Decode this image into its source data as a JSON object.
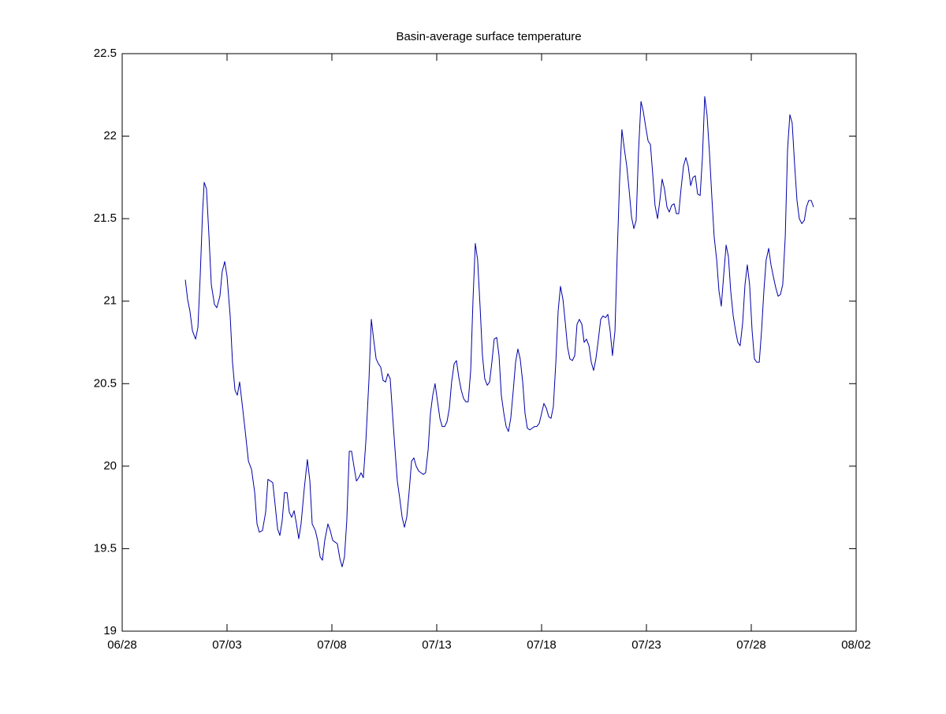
{
  "chart_data": {
    "type": "line",
    "title": "Basin-average surface temperature",
    "color": "#0000aa",
    "xlim": [
      0,
      35
    ],
    "xticks": [
      {
        "value": 0,
        "label": "06/28"
      },
      {
        "value": 5,
        "label": "07/03"
      },
      {
        "value": 10,
        "label": "07/08"
      },
      {
        "value": 15,
        "label": "07/13"
      },
      {
        "value": 20,
        "label": "07/18"
      },
      {
        "value": 25,
        "label": "07/23"
      },
      {
        "value": 30,
        "label": "07/28"
      },
      {
        "value": 35,
        "label": "08/02"
      }
    ],
    "ylim": [
      19,
      22.5
    ],
    "yticks": [
      19,
      19.5,
      20,
      20.5,
      21,
      21.5,
      22,
      22.5
    ],
    "grid": false,
    "x": [
      3.01,
      3.12,
      3.23,
      3.35,
      3.5,
      3.61,
      3.72,
      3.83,
      3.91,
      4.02,
      4.14,
      4.25,
      4.4,
      4.51,
      4.66,
      4.77,
      4.89,
      5.0,
      5.15,
      5.26,
      5.38,
      5.49,
      5.6,
      5.71,
      5.86,
      6.02,
      6.17,
      6.32,
      6.43,
      6.54,
      6.69,
      6.84,
      6.95,
      7.07,
      7.18,
      7.29,
      7.41,
      7.52,
      7.63,
      7.74,
      7.86,
      7.97,
      8.08,
      8.2,
      8.31,
      8.42,
      8.53,
      8.68,
      8.83,
      8.95,
      9.06,
      9.21,
      9.32,
      9.44,
      9.55,
      9.66,
      9.81,
      9.92,
      10.04,
      10.15,
      10.26,
      10.38,
      10.49,
      10.6,
      10.71,
      10.83,
      10.94,
      11.05,
      11.17,
      11.28,
      11.39,
      11.5,
      11.62,
      11.77,
      11.88,
      11.99,
      12.11,
      12.22,
      12.33,
      12.44,
      12.56,
      12.67,
      12.78,
      12.89,
      13.01,
      13.12,
      13.23,
      13.35,
      13.46,
      13.57,
      13.68,
      13.8,
      13.91,
      14.02,
      14.14,
      14.25,
      14.36,
      14.47,
      14.59,
      14.7,
      14.81,
      14.92,
      15.04,
      15.15,
      15.26,
      15.38,
      15.49,
      15.6,
      15.71,
      15.83,
      15.94,
      16.05,
      16.17,
      16.28,
      16.39,
      16.5,
      16.62,
      16.73,
      16.84,
      16.95,
      17.07,
      17.18,
      17.29,
      17.41,
      17.52,
      17.63,
      17.74,
      17.86,
      17.97,
      18.08,
      18.2,
      18.31,
      18.42,
      18.53,
      18.65,
      18.76,
      18.87,
      18.98,
      19.1,
      19.21,
      19.32,
      19.44,
      19.55,
      19.66,
      19.77,
      19.89,
      20.0,
      20.11,
      20.23,
      20.34,
      20.45,
      20.56,
      20.68,
      20.79,
      20.9,
      21.02,
      21.13,
      21.24,
      21.35,
      21.47,
      21.58,
      21.69,
      21.8,
      21.92,
      22.03,
      22.14,
      22.26,
      22.37,
      22.48,
      22.59,
      22.71,
      22.82,
      22.93,
      23.05,
      23.16,
      23.27,
      23.38,
      23.5,
      23.61,
      23.72,
      23.83,
      23.95,
      24.06,
      24.17,
      24.29,
      24.4,
      24.51,
      24.62,
      24.74,
      24.85,
      24.96,
      25.08,
      25.19,
      25.3,
      25.41,
      25.53,
      25.64,
      25.75,
      25.86,
      25.98,
      26.09,
      26.2,
      26.32,
      26.43,
      26.54,
      26.65,
      26.77,
      26.88,
      26.99,
      27.11,
      27.22,
      27.33,
      27.44,
      27.56,
      27.67,
      27.78,
      27.89,
      28.01,
      28.12,
      28.23,
      28.35,
      28.46,
      28.57,
      28.68,
      28.8,
      28.91,
      29.02,
      29.14,
      29.25,
      29.36,
      29.47,
      29.59,
      29.7,
      29.81,
      29.92,
      30.04,
      30.15,
      30.26,
      30.38,
      30.49,
      30.6,
      30.71,
      30.83,
      30.94,
      31.05,
      31.17,
      31.28,
      31.39,
      31.5,
      31.62,
      31.73,
      31.84,
      31.95,
      32.07,
      32.18,
      32.29,
      32.41,
      32.53,
      32.63,
      32.74,
      32.86,
      32.97
    ],
    "values": [
      21.13,
      21.01,
      20.94,
      20.82,
      20.77,
      20.84,
      21.15,
      21.53,
      21.72,
      21.68,
      21.39,
      21.1,
      20.98,
      20.96,
      21.03,
      21.18,
      21.24,
      21.15,
      20.91,
      20.63,
      20.46,
      20.43,
      20.51,
      20.39,
      20.22,
      20.03,
      19.98,
      19.84,
      19.65,
      19.6,
      19.61,
      19.72,
      19.92,
      19.91,
      19.9,
      19.77,
      19.62,
      19.58,
      19.67,
      19.84,
      19.84,
      19.72,
      19.69,
      19.73,
      19.65,
      19.56,
      19.65,
      19.86,
      20.04,
      19.91,
      19.65,
      19.61,
      19.55,
      19.45,
      19.43,
      19.55,
      19.65,
      19.61,
      19.55,
      19.54,
      19.53,
      19.44,
      19.39,
      19.45,
      19.67,
      20.09,
      20.09,
      20.0,
      19.91,
      19.93,
      19.96,
      19.93,
      20.15,
      20.53,
      20.89,
      20.77,
      20.65,
      20.62,
      20.6,
      20.52,
      20.51,
      20.56,
      20.53,
      20.32,
      20.1,
      19.91,
      19.81,
      19.69,
      19.63,
      19.69,
      19.84,
      20.03,
      20.05,
      20.0,
      19.97,
      19.96,
      19.95,
      19.96,
      20.1,
      20.32,
      20.43,
      20.5,
      20.39,
      20.29,
      20.24,
      20.24,
      20.27,
      20.35,
      20.51,
      20.62,
      20.64,
      20.54,
      20.46,
      20.41,
      20.39,
      20.39,
      20.58,
      21.01,
      21.35,
      21.25,
      20.96,
      20.67,
      20.53,
      20.49,
      20.51,
      20.63,
      20.77,
      20.78,
      20.67,
      20.43,
      20.32,
      20.24,
      20.21,
      20.29,
      20.46,
      20.63,
      20.71,
      20.65,
      20.51,
      20.32,
      20.23,
      20.22,
      20.23,
      20.24,
      20.24,
      20.26,
      20.32,
      20.38,
      20.35,
      20.3,
      20.29,
      20.36,
      20.63,
      20.94,
      21.09,
      21.01,
      20.87,
      20.72,
      20.65,
      20.64,
      20.67,
      20.86,
      20.89,
      20.86,
      20.75,
      20.77,
      20.73,
      20.63,
      20.58,
      20.65,
      20.77,
      20.89,
      20.91,
      20.9,
      20.92,
      20.82,
      20.67,
      20.82,
      21.3,
      21.73,
      22.04,
      21.92,
      21.82,
      21.68,
      21.51,
      21.44,
      21.49,
      21.9,
      22.21,
      22.15,
      22.06,
      21.97,
      21.95,
      21.77,
      21.58,
      21.5,
      21.61,
      21.74,
      21.68,
      21.57,
      21.54,
      21.58,
      21.59,
      21.53,
      21.53,
      21.68,
      21.82,
      21.87,
      21.82,
      21.7,
      21.75,
      21.76,
      21.65,
      21.64,
      21.87,
      22.24,
      22.13,
      21.89,
      21.63,
      21.39,
      21.25,
      21.06,
      20.97,
      21.15,
      21.34,
      21.27,
      21.06,
      20.91,
      20.82,
      20.75,
      20.73,
      20.87,
      21.1,
      21.22,
      21.1,
      20.82,
      20.65,
      20.63,
      20.63,
      20.82,
      21.06,
      21.25,
      21.32,
      21.22,
      21.15,
      21.08,
      21.03,
      21.04,
      21.1,
      21.39,
      21.92,
      22.13,
      22.08,
      21.82,
      21.61,
      21.5,
      21.47,
      21.49,
      21.57,
      21.61,
      21.61,
      21.57
    ]
  }
}
